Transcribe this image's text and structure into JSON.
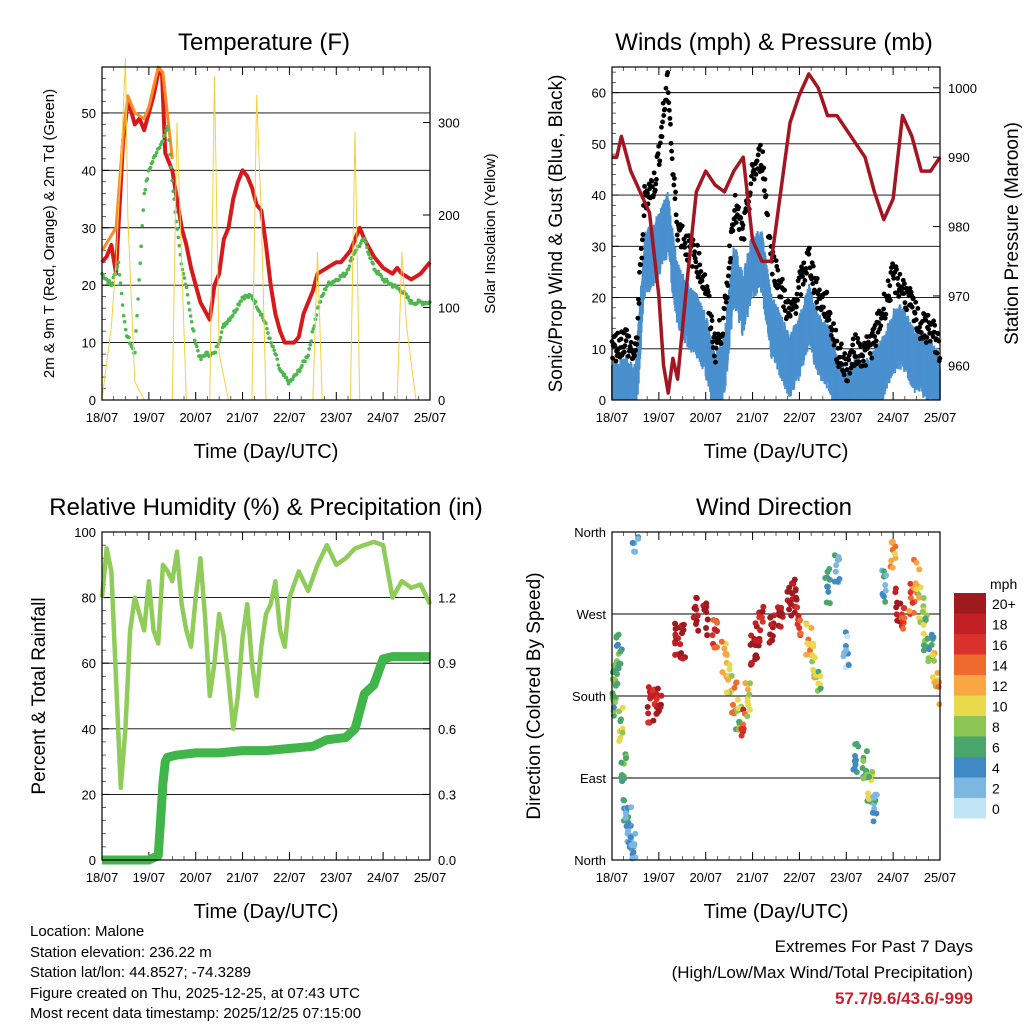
{
  "time_ticks": [
    "18/07",
    "19/07",
    "20/07",
    "21/07",
    "22/07",
    "23/07",
    "24/07",
    "25/07"
  ],
  "chart_data": [
    {
      "id": "temperature",
      "type": "line",
      "title": "Temperature (F)",
      "xlabel": "Time (Day/UTC)",
      "ylabel": "2m & 9m T (Red, Orange) & 2m Td (Green)",
      "y2label": "Solar Insolation (Yellow)",
      "x_range": [
        0,
        7
      ],
      "ylim": [
        0,
        58
      ],
      "y_ticks": [
        0,
        10,
        20,
        30,
        40,
        50
      ],
      "y_tick_labels": [
        "0",
        "10",
        "20",
        "30",
        "40",
        "50"
      ],
      "y2lim": [
        0,
        360
      ],
      "y2_ticks": [
        0,
        100,
        200,
        300
      ],
      "y2_tick_labels": [
        "0",
        "100",
        "200",
        "300"
      ],
      "series": [
        {
          "name": "2m T",
          "color": "#d7191c",
          "x": [
            0,
            0.1,
            0.2,
            0.3,
            0.35,
            0.45,
            0.55,
            0.6,
            0.7,
            0.8,
            0.9,
            1.0,
            1.1,
            1.2,
            1.28,
            1.35,
            1.5,
            1.6,
            1.7,
            1.8,
            1.9,
            2.0,
            2.1,
            2.3,
            2.4,
            2.5,
            2.6,
            2.7,
            2.8,
            2.9,
            3.0,
            3.1,
            3.2,
            3.3,
            3.4,
            3.5,
            3.6,
            3.7,
            3.8,
            3.9,
            4.0,
            4.1,
            4.2,
            4.3,
            4.4,
            4.5,
            4.6,
            4.8,
            5.0,
            5.1,
            5.2,
            5.3,
            5.4,
            5.5,
            5.6,
            5.8,
            6.0,
            6.2,
            6.3,
            6.4,
            6.6,
            6.8,
            7.0
          ],
          "values": [
            24,
            25,
            27,
            22,
            30,
            45,
            52,
            51,
            48,
            49,
            47,
            50,
            53,
            57,
            57,
            43,
            40,
            35,
            30,
            27,
            23,
            20,
            17,
            14,
            20,
            22,
            28,
            30,
            35,
            38,
            40,
            39,
            37,
            34,
            33,
            27,
            20,
            15,
            12,
            10,
            10,
            10,
            11,
            15,
            17,
            19,
            22,
            23,
            24,
            24,
            25,
            26,
            28,
            30,
            28,
            25,
            23,
            22,
            23,
            22,
            21,
            22,
            24
          ]
        },
        {
          "name": "9m T",
          "color": "#fb8b24",
          "x": [
            0,
            0.3,
            0.45,
            0.55,
            0.7,
            0.9,
            1.0,
            1.2,
            1.3,
            1.5
          ],
          "values": [
            26,
            30,
            46,
            53,
            50,
            49,
            51,
            58,
            57,
            42
          ]
        },
        {
          "name": "2m Td",
          "color": "#4db84d",
          "x": [
            0,
            0.2,
            0.35,
            0.5,
            0.7,
            0.9,
            1.0,
            1.1,
            1.2,
            1.3,
            1.4,
            1.5,
            1.6,
            1.7,
            1.8,
            1.9,
            2.0,
            2.1,
            2.2,
            2.4,
            2.6,
            2.8,
            3.0,
            3.2,
            3.4,
            3.5,
            3.6,
            3.7,
            3.8,
            4.0,
            4.2,
            4.4,
            4.6,
            4.8,
            5.0,
            5.2,
            5.4,
            5.6,
            5.8,
            6.0,
            6.2,
            6.4,
            6.6,
            6.8,
            7.0
          ],
          "values": [
            22,
            20,
            24,
            12,
            8,
            36,
            40,
            42,
            44,
            45,
            48,
            38,
            30,
            23,
            20,
            14,
            10,
            7,
            8,
            8,
            13,
            15,
            18,
            18,
            15,
            13,
            10,
            8,
            5,
            3,
            5,
            8,
            16,
            20,
            21,
            22,
            26,
            28,
            23,
            21,
            20,
            19,
            17,
            17,
            17
          ]
        },
        {
          "name": "Solar Insolation",
          "color": "#f2d043",
          "axis": "y2",
          "x": [
            0,
            0.2,
            0.3,
            0.4,
            0.5,
            0.55,
            0.7,
            0.9,
            1.2,
            1.5,
            1.6,
            1.7,
            1.8,
            2.0,
            2.3,
            2.4,
            2.5,
            2.7,
            3.0,
            3.2,
            3.3,
            3.4,
            3.5,
            3.6,
            4.2,
            4.5,
            4.6,
            4.7,
            5.0,
            5.3,
            5.4,
            5.5,
            6.3,
            6.4,
            6.5,
            6.7,
            7.0
          ],
          "values": [
            0,
            80,
            150,
            250,
            370,
            200,
            20,
            0,
            0,
            0,
            300,
            150,
            0,
            0,
            0,
            350,
            50,
            0,
            0,
            0,
            330,
            200,
            0,
            0,
            0,
            0,
            160,
            0,
            0,
            0,
            290,
            0,
            0,
            160,
            80,
            0,
            0
          ]
        }
      ]
    },
    {
      "id": "winds",
      "type": "scatter",
      "title": "Winds (mph) & Pressure (mb)",
      "xlabel": "Time (Day/UTC)",
      "ylabel": "Sonic/Prop Wind & Gust (Blue, Black)",
      "y2label": "Station Pressure (Maroon)",
      "x_range": [
        0,
        7
      ],
      "ylim": [
        0,
        65
      ],
      "y_ticks": [
        0,
        10,
        20,
        30,
        40,
        50,
        60
      ],
      "y_tick_labels": [
        "0",
        "10",
        "20",
        "30",
        "40",
        "50",
        "60"
      ],
      "y2lim": [
        955,
        1003
      ],
      "y2_ticks": [
        960,
        970,
        980,
        990,
        1000
      ],
      "y2_tick_labels": [
        "960",
        "970",
        "980",
        "990",
        "1000"
      ],
      "series": [
        {
          "name": "Wind",
          "color": "#4a90cf",
          "x": [
            0,
            0.3,
            0.5,
            0.7,
            0.9,
            1.0,
            1.1,
            1.2,
            1.3,
            1.4,
            1.6,
            1.8,
            2.0,
            2.2,
            2.4,
            2.6,
            2.8,
            3.0,
            3.2,
            3.4,
            3.6,
            3.8,
            4.0,
            4.2,
            4.4,
            4.6,
            4.8,
            5.0,
            5.2,
            5.4,
            5.6,
            5.8,
            6.0,
            6.2,
            6.4,
            6.6,
            6.8,
            7.0
          ],
          "values": [
            5,
            6,
            4,
            30,
            32,
            34,
            36,
            38,
            30,
            24,
            20,
            18,
            14,
            6,
            10,
            28,
            22,
            30,
            30,
            18,
            14,
            10,
            14,
            20,
            14,
            12,
            6,
            3,
            6,
            5,
            7,
            10,
            15,
            16,
            12,
            10,
            9,
            6
          ]
        },
        {
          "name": "Gust",
          "color": "#000000",
          "x": [
            0,
            0.3,
            0.5,
            0.7,
            0.9,
            1.0,
            1.1,
            1.2,
            1.3,
            1.4,
            1.6,
            1.8,
            2.0,
            2.2,
            2.4,
            2.6,
            2.8,
            3.0,
            3.2,
            3.4,
            3.6,
            3.8,
            4.0,
            4.2,
            4.4,
            4.6,
            4.8,
            5.0,
            5.2,
            5.4,
            5.6,
            5.8,
            6.0,
            6.2,
            6.4,
            6.6,
            6.8,
            7.0
          ],
          "values": [
            10,
            12,
            8,
            40,
            42,
            48,
            56,
            62,
            44,
            34,
            30,
            28,
            22,
            10,
            16,
            38,
            32,
            44,
            48,
            28,
            22,
            16,
            22,
            28,
            20,
            18,
            10,
            6,
            10,
            9,
            12,
            18,
            24,
            22,
            18,
            14,
            14,
            10
          ]
        },
        {
          "name": "Station Pressure",
          "color": "#a31621",
          "axis": "y2",
          "x": [
            0,
            0.1,
            0.2,
            0.4,
            0.6,
            0.8,
            1.0,
            1.1,
            1.2,
            1.3,
            1.4,
            1.6,
            1.8,
            2.0,
            2.2,
            2.4,
            2.6,
            2.8,
            3.0,
            3.2,
            3.4,
            3.6,
            3.8,
            4.0,
            4.2,
            4.4,
            4.6,
            4.8,
            5.0,
            5.2,
            5.4,
            5.6,
            5.8,
            6.0,
            6.2,
            6.4,
            6.6,
            6.8,
            7.0
          ],
          "values": [
            990,
            990,
            993,
            988,
            985,
            982,
            970,
            960,
            956,
            961,
            958,
            972,
            985,
            988,
            986,
            985,
            988,
            990,
            978,
            975,
            975,
            985,
            995,
            999,
            1002,
            1000,
            996,
            996,
            994,
            992,
            990,
            985,
            981,
            984,
            996,
            993,
            988,
            988,
            990
          ]
        }
      ]
    },
    {
      "id": "humidity",
      "type": "line",
      "title": "Relative Humidity (%) & Precipitation (in)",
      "xlabel": "Time (Day/UTC)",
      "ylabel": "Percent & Total Rainfall",
      "x_range": [
        0,
        7
      ],
      "ylim": [
        0,
        100
      ],
      "y_ticks": [
        0,
        20,
        40,
        60,
        80,
        100
      ],
      "y_tick_labels": [
        "0",
        "20",
        "40",
        "60",
        "80",
        "100"
      ],
      "y2lim": [
        0,
        1.5
      ],
      "y2_ticks": [
        0,
        0.3,
        0.6,
        0.9,
        1.2
      ],
      "y2_tick_labels": [
        "0.0",
        "0.3",
        "0.6",
        "0.9",
        "1.2"
      ],
      "series": [
        {
          "name": "Relative Humidity",
          "color": "#8fcc5a",
          "x": [
            0,
            0.1,
            0.2,
            0.3,
            0.4,
            0.5,
            0.6,
            0.7,
            0.8,
            0.9,
            1.0,
            1.1,
            1.2,
            1.3,
            1.4,
            1.5,
            1.6,
            1.7,
            1.8,
            1.9,
            2.0,
            2.1,
            2.2,
            2.3,
            2.4,
            2.5,
            2.6,
            2.7,
            2.8,
            2.9,
            3.0,
            3.1,
            3.2,
            3.3,
            3.4,
            3.5,
            3.6,
            3.7,
            3.8,
            3.9,
            4.0,
            4.2,
            4.4,
            4.6,
            4.8,
            5.0,
            5.2,
            5.4,
            5.6,
            5.8,
            6.0,
            6.2,
            6.4,
            6.6,
            6.8,
            7.0
          ],
          "values": [
            80,
            95,
            88,
            55,
            22,
            40,
            70,
            80,
            75,
            70,
            85,
            70,
            66,
            90,
            88,
            85,
            94,
            78,
            70,
            65,
            80,
            92,
            74,
            50,
            60,
            75,
            68,
            55,
            40,
            50,
            68,
            78,
            60,
            50,
            65,
            75,
            78,
            85,
            70,
            65,
            80,
            88,
            82,
            90,
            96,
            90,
            92,
            95,
            96,
            97,
            96,
            80,
            85,
            83,
            84,
            78
          ]
        },
        {
          "name": "Total Rainfall",
          "color": "#3fb54a",
          "axis": "y2",
          "x": [
            0,
            0.5,
            1.0,
            1.2,
            1.25,
            1.3,
            1.35,
            1.4,
            1.6,
            2.0,
            2.5,
            3.0,
            3.5,
            4.0,
            4.5,
            4.8,
            5.2,
            5.4,
            5.6,
            5.8,
            6.0,
            6.2,
            6.5,
            7.0
          ],
          "values": [
            0,
            0,
            0,
            0.02,
            0.18,
            0.35,
            0.45,
            0.47,
            0.48,
            0.49,
            0.49,
            0.5,
            0.5,
            0.51,
            0.52,
            0.55,
            0.56,
            0.6,
            0.76,
            0.8,
            0.92,
            0.93,
            0.93,
            0.93
          ]
        }
      ]
    },
    {
      "id": "wind_direction",
      "type": "scatter",
      "title": "Wind Direction",
      "xlabel": "Time (Day/UTC)",
      "ylabel": "Direction (Colored By Speed)",
      "x_range": [
        0,
        7
      ],
      "ylim": [
        0,
        360
      ],
      "y_ticks": [
        0,
        90,
        180,
        270,
        360
      ],
      "y_tick_labels": [
        "North",
        "East",
        "South",
        "West",
        "North"
      ],
      "colorbar_title": "mph",
      "colorbar_labels": [
        "20+",
        "18",
        "16",
        "14",
        "12",
        "10",
        "8",
        "6",
        "4",
        "2",
        "0"
      ],
      "colorbar_colors": [
        "#9e1a1f",
        "#c21f26",
        "#d9322c",
        "#ee6a2f",
        "#f9a743",
        "#e8d94d",
        "#8ec655",
        "#4aa66b",
        "#4189c5",
        "#7bb7e0",
        "#c2e4f7"
      ],
      "series": [
        {
          "name": "Direction",
          "x": [
            0,
            0.05,
            0.1,
            0.15,
            0.2,
            0.25,
            0.3,
            0.35,
            0.4,
            0.45,
            0.5,
            0.8,
            0.9,
            1.0,
            1.4,
            1.5,
            1.8,
            2.0,
            2.2,
            2.4,
            2.5,
            2.6,
            2.7,
            2.8,
            2.9,
            3.0,
            3.1,
            3.2,
            3.4,
            3.6,
            3.8,
            3.9,
            4.0,
            4.2,
            4.3,
            4.4,
            4.6,
            4.8,
            5.0,
            5.2,
            5.4,
            5.5,
            5.6,
            5.8,
            6.0,
            6.1,
            6.2,
            6.4,
            6.5,
            6.6,
            6.7,
            6.8,
            6.9,
            7.0
          ],
          "values": [
            170,
            190,
            210,
            230,
            150,
            100,
            60,
            40,
            20,
            10,
            350,
            170,
            170,
            175,
            245,
            240,
            270,
            265,
            250,
            220,
            200,
            180,
            160,
            150,
            175,
            230,
            240,
            260,
            255,
            270,
            285,
            290,
            260,
            240,
            220,
            200,
            300,
            320,
            230,
            110,
            100,
            80,
            60,
            300,
            330,
            280,
            270,
            290,
            310,
            280,
            250,
            230,
            210,
            190
          ],
          "speeds": [
            6,
            8,
            6,
            5,
            8,
            6,
            4,
            2,
            3,
            2,
            3,
            18,
            18,
            18,
            20,
            20,
            20,
            20,
            16,
            12,
            10,
            14,
            8,
            16,
            10,
            20,
            20,
            18,
            20,
            20,
            20,
            20,
            16,
            12,
            10,
            8,
            6,
            4,
            2,
            4,
            6,
            8,
            4,
            4,
            12,
            20,
            16,
            14,
            12,
            10,
            8,
            6,
            10,
            12
          ]
        }
      ]
    }
  ],
  "info": {
    "location": "Location: Malone",
    "elevation": "Station elevation: 236.22 m",
    "latlon": "Station lat/lon: 44.8527; -74.3289",
    "created": "Figure created on Thu, 2025-12-25, at 07:43 UTC",
    "recent": "Most recent data timestamp: 2025/12/25 07:15:00"
  },
  "extremes": {
    "title": "Extremes For Past 7 Days",
    "subtitle": "(High/Low/Max Wind/Total Precipitation)",
    "values": "57.7/9.6/43.6/-999"
  }
}
